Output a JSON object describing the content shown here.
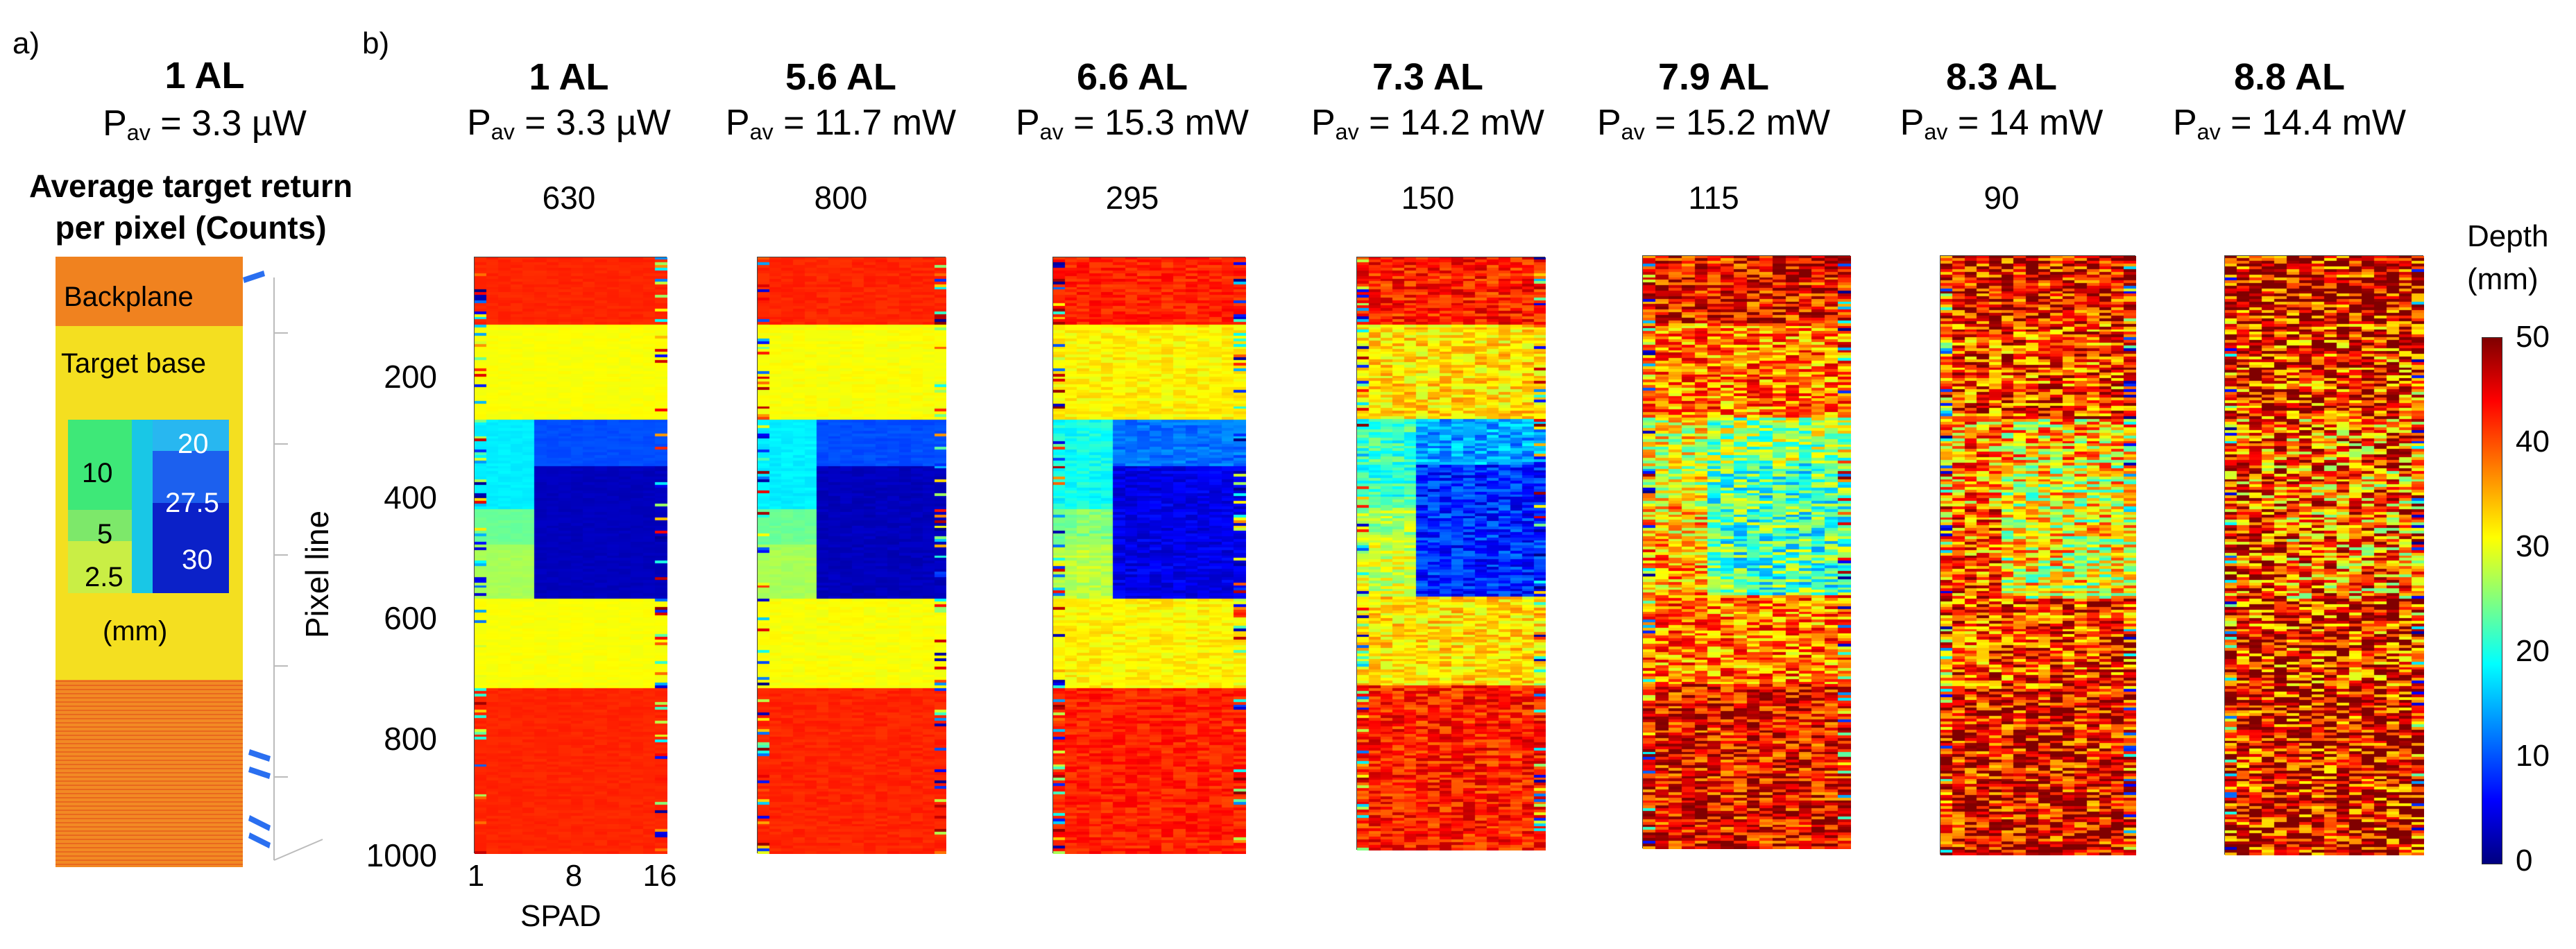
{
  "panel_a": {
    "letter": "a)",
    "title": "1 AL",
    "power_prefix": "P",
    "power_sub": "av",
    "power_value": " = 3.3 µW",
    "caption_line1": "Average target return",
    "caption_line2": "per pixel (Counts)",
    "labels": {
      "backplane": "Backplane",
      "target_base": "Target base",
      "step_10": "10",
      "step_20": "20",
      "step_27_5": "27.5",
      "step_5": "5",
      "step_30": "30",
      "step_2_5": "2.5",
      "unit": "(mm)"
    }
  },
  "panel_b": {
    "letter": "b)",
    "columns": [
      {
        "title": "1 AL",
        "power": " = 3.3 µW",
        "counts": "630"
      },
      {
        "title": "5.6 AL",
        "power": " = 11.7 mW",
        "counts": "800"
      },
      {
        "title": "6.6 AL",
        "power": " = 15.3 mW",
        "counts": "295"
      },
      {
        "title": "7.3 AL",
        "power": " = 14.2 mW",
        "counts": "150"
      },
      {
        "title": "7.9 AL",
        "power": " = 15.2 mW",
        "counts": "115"
      },
      {
        "title": "8.3 AL",
        "power": " = 14 mW",
        "counts": "90"
      },
      {
        "title": "8.8 AL",
        "power": " = 14.4 mW",
        "counts": ""
      }
    ],
    "power_prefix": "P",
    "power_sub": "av",
    "y_axis_label": "Pixel line",
    "y_ticks": [
      "200",
      "400",
      "600",
      "800",
      "1000"
    ],
    "x_axis_label": "SPAD",
    "x_ticks": [
      "1",
      "8",
      "16"
    ]
  },
  "colorbar": {
    "title_line1": "Depth",
    "title_line2": "(mm)",
    "ticks": [
      "50",
      "40",
      "30",
      "20",
      "10",
      "0"
    ],
    "colormap": "jet",
    "range": [
      0,
      50
    ]
  },
  "colors": {
    "deep_red": "#a50e12",
    "red": "#d6271b",
    "orange": "#f28a24",
    "yellow": "#f6e61f",
    "yellow_green": "#c7ee3a",
    "cyan": "#2ef2e2",
    "blue": "#1050e8",
    "navy": "#000a8c"
  }
}
